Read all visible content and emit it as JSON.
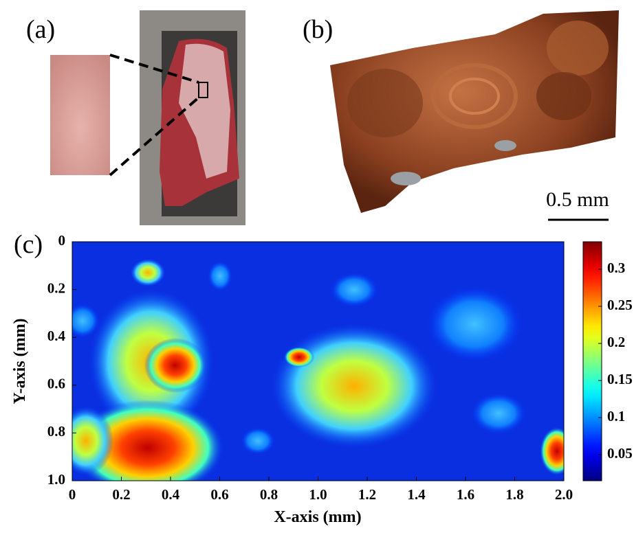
{
  "panels": {
    "a": {
      "label": "(a)"
    },
    "b": {
      "label": "(b)",
      "scale_bar": "0.5 mm"
    },
    "c": {
      "label": "(c)"
    }
  },
  "chart_data": {
    "type": "heatmap",
    "xlabel": "X-axis (mm)",
    "ylabel": "Y-axis (mm)",
    "xlim": [
      0,
      2
    ],
    "ylim": [
      0,
      1
    ],
    "y_inverted": true,
    "xticks": [
      0,
      0.2,
      0.4,
      0.6,
      0.8,
      {
        "value": 1,
        "label": "1.0"
      },
      1.2,
      1.4,
      1.6,
      1.8,
      {
        "value": 2,
        "label": "2.0"
      }
    ],
    "yticks": [
      0,
      0.2,
      0.4,
      0.6,
      0.8,
      {
        "value": 1,
        "label": "1.0"
      }
    ],
    "colormap": "jet",
    "clim": [
      0.015,
      0.337
    ],
    "cticks": [
      0.05,
      0.1,
      0.15,
      0.2,
      0.25,
      0.3
    ]
  }
}
